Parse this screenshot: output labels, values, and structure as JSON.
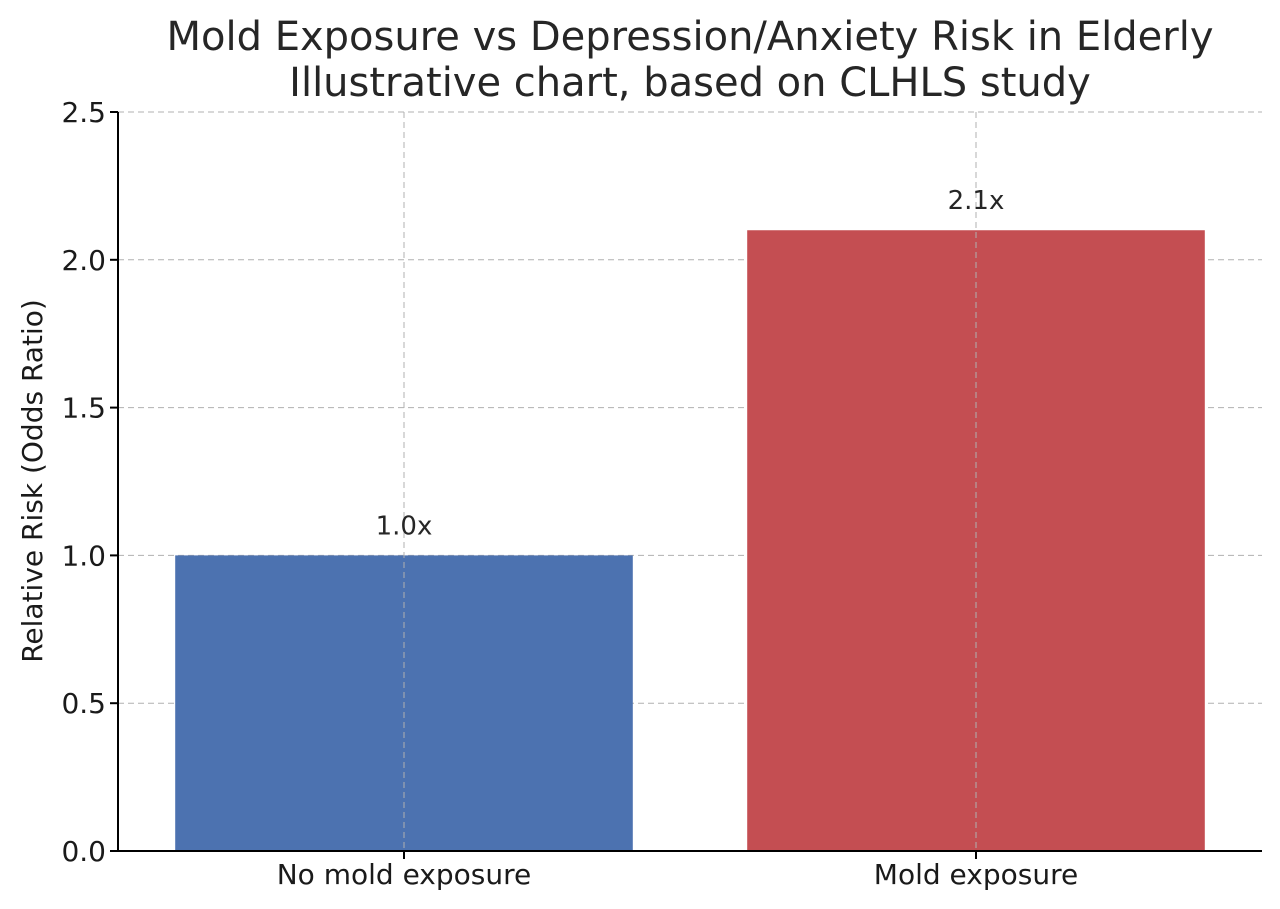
{
  "chart_data": {
    "type": "bar",
    "title": "Mold Exposure vs Depression/Anxiety Risk in Elderly",
    "subtitle": "Illustrative chart, based on CLHLS study",
    "xlabel": "",
    "ylabel": "Relative Risk (Odds Ratio)",
    "categories": [
      "No mold exposure",
      "Mold exposure"
    ],
    "values": [
      1.0,
      2.1
    ],
    "data_labels": [
      "1.0x",
      "2.1x"
    ],
    "colors": [
      "#4c72b0",
      "#c44e52"
    ],
    "ylim": [
      0,
      2.5
    ],
    "yticks": [
      0.0,
      0.5,
      1.0,
      1.5,
      2.0,
      2.5
    ],
    "ytick_labels": [
      "0.0",
      "0.5",
      "1.0",
      "1.5",
      "2.0",
      "2.5"
    ],
    "grid": true,
    "legend": "none"
  }
}
